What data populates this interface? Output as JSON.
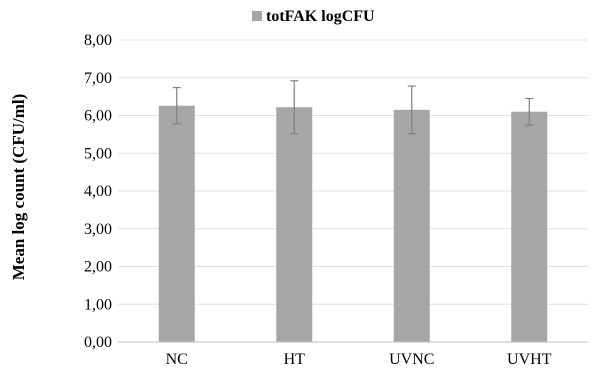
{
  "chart_data": {
    "type": "bar",
    "categories": [
      "NC",
      "HT",
      "UVNC",
      "UVHT"
    ],
    "series": [
      {
        "name": "totFAK logCFU",
        "values": [
          6.26,
          6.22,
          6.15,
          6.1
        ],
        "error": [
          0.48,
          0.7,
          0.63,
          0.35
        ],
        "color": "#a6a6a6"
      }
    ],
    "ylabel": "Mean log count (CFU/ml)",
    "xlabel": "",
    "ylim": [
      0,
      8
    ],
    "yticks": [
      "0,00",
      "1,00",
      "2,00",
      "3,00",
      "4,00",
      "5,00",
      "6,00",
      "7,00",
      "8,00"
    ],
    "grid": true,
    "legend_position": "top-center",
    "colors": {
      "bar": "#a6a6a6",
      "errorbar": "#7f7f7f",
      "grid": "#e0e0e0",
      "axis": "#bfbfbf"
    }
  }
}
